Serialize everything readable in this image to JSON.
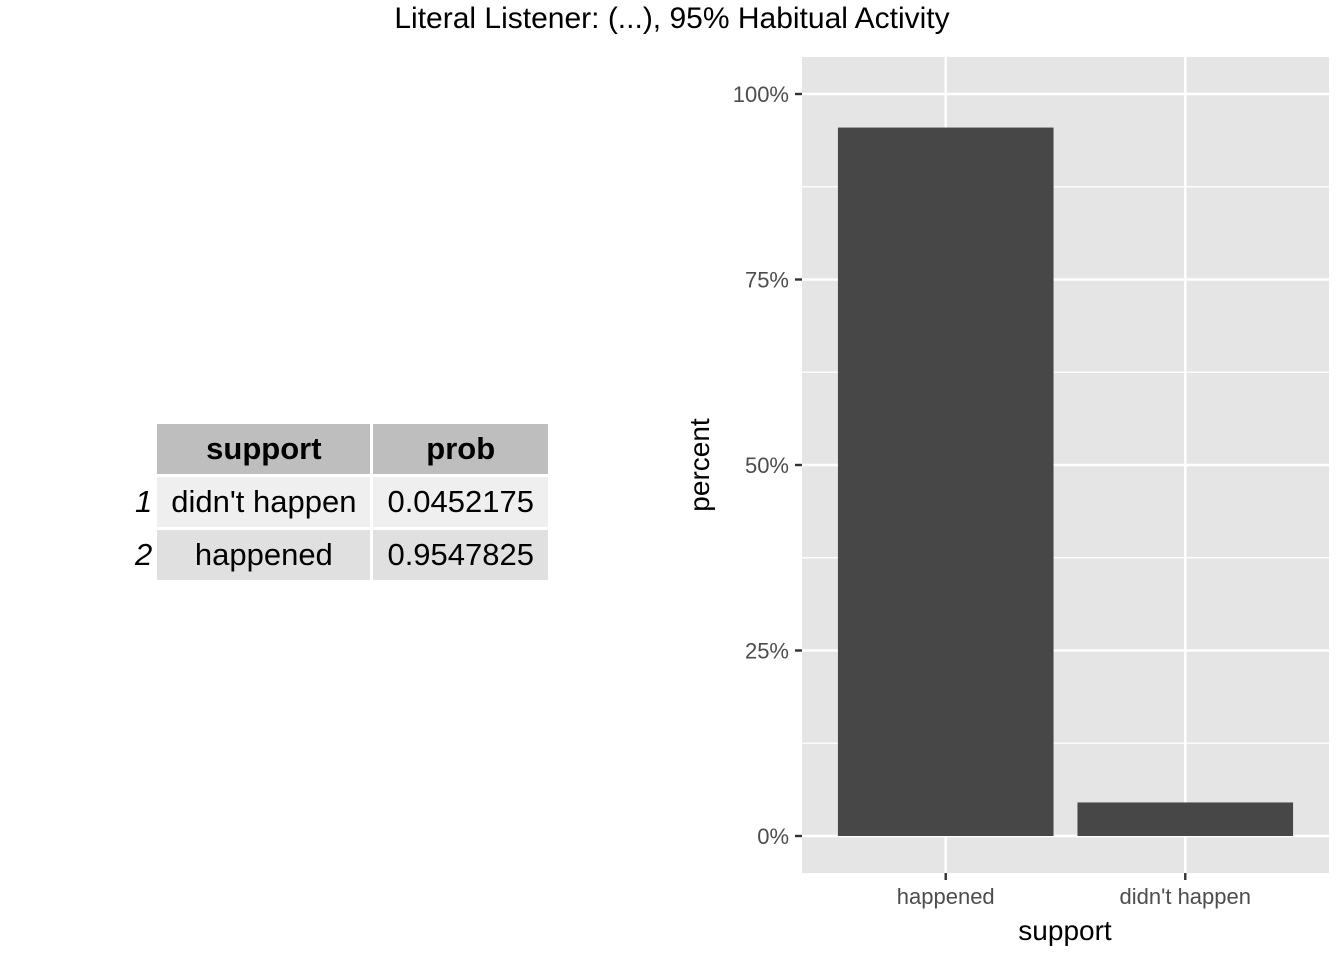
{
  "title": "Literal Listener: (...), 95% Habitual Activity",
  "table": {
    "columns": [
      "support",
      "prob"
    ],
    "rows": [
      {
        "rowname": "1",
        "support": "didn't happen",
        "prob": "0.0452175"
      },
      {
        "rowname": "2",
        "support": "happened",
        "prob": "0.9547825"
      }
    ]
  },
  "chart_data": {
    "type": "bar",
    "title": "Literal Listener: (...), 95% Habitual Activity",
    "categories": [
      "happened",
      "didn't happen"
    ],
    "values": [
      0.9547825,
      0.0452175
    ],
    "xlabel": "support",
    "ylabel": "percent",
    "ylim": [
      0,
      1.1
    ],
    "yticks": [
      0,
      0.25,
      0.5,
      0.75,
      1.0
    ],
    "ytick_labels": [
      "0%",
      "25%",
      "50%",
      "75%",
      "100%"
    ],
    "grid": true,
    "colors": {
      "bar": "#474747",
      "panel": "#e5e5e5",
      "grid": "#ffffff"
    }
  }
}
